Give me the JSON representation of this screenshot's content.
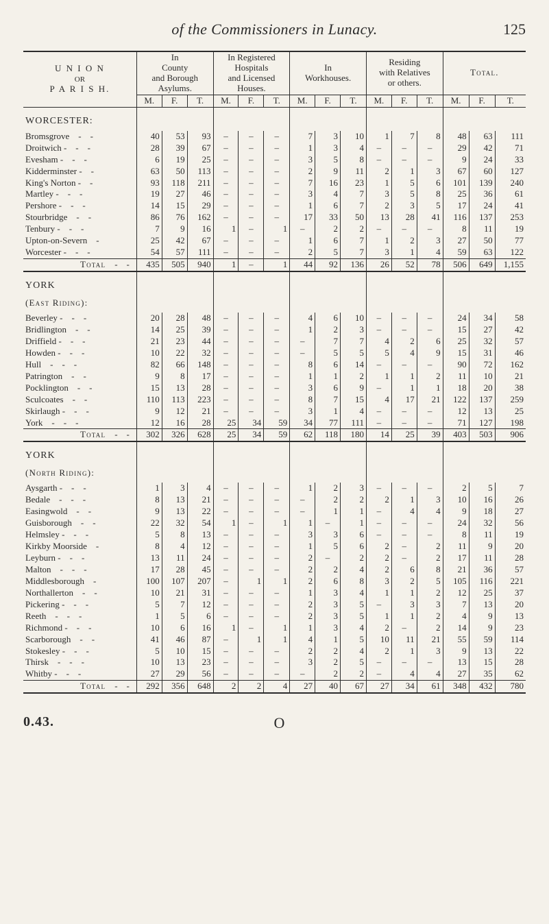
{
  "page": {
    "running_title_italic": "of the Commissioners in Lunacy.",
    "page_number": "125",
    "signature": "0.43.",
    "sheet_mark": "O"
  },
  "headers": {
    "union": [
      "U N I O N",
      "OR",
      "P A R I S H."
    ],
    "groups": [
      "In\nCounty\nand Borough\nAsylums.",
      "In Registered\nHospitals\nand Licensed\nHouses.",
      "In\nWorkhouses.",
      "Residing\nwith Relatives\nor others.",
      "Total."
    ],
    "sub": [
      "M.",
      "F.",
      "T."
    ]
  },
  "dash": "–",
  "sections": [
    {
      "title": "WORCESTER:",
      "rows": [
        {
          "stub": "Bromsgrove",
          "d": 2,
          "v": [
            "40",
            "53",
            "93",
            "–",
            "–",
            "–",
            "7",
            "3",
            "10",
            "1",
            "7",
            "8",
            "48",
            "63",
            "111"
          ]
        },
        {
          "stub": "Droitwich -",
          "d": 2,
          "v": [
            "28",
            "39",
            "67",
            "–",
            "–",
            "–",
            "1",
            "3",
            "4",
            "–",
            "–",
            "–",
            "29",
            "42",
            "71"
          ]
        },
        {
          "stub": "Evesham -",
          "d": 2,
          "v": [
            "6",
            "19",
            "25",
            "–",
            "–",
            "–",
            "3",
            "5",
            "8",
            "–",
            "–",
            "–",
            "9",
            "24",
            "33"
          ]
        },
        {
          "stub": "Kidderminster -",
          "d": 1,
          "v": [
            "63",
            "50",
            "113",
            "–",
            "–",
            "–",
            "2",
            "9",
            "11",
            "2",
            "1",
            "3",
            "67",
            "60",
            "127"
          ]
        },
        {
          "stub": "King's Norton -",
          "d": 1,
          "v": [
            "93",
            "118",
            "211",
            "–",
            "–",
            "–",
            "7",
            "16",
            "23",
            "1",
            "5",
            "6",
            "101",
            "139",
            "240"
          ]
        },
        {
          "stub": "Martley -",
          "d": 2,
          "v": [
            "19",
            "27",
            "46",
            "–",
            "–",
            "–",
            "3",
            "4",
            "7",
            "3",
            "5",
            "8",
            "25",
            "36",
            "61"
          ]
        },
        {
          "stub": "Pershore -",
          "d": 2,
          "v": [
            "14",
            "15",
            "29",
            "–",
            "–",
            "–",
            "1",
            "6",
            "7",
            "2",
            "3",
            "5",
            "17",
            "24",
            "41"
          ]
        },
        {
          "stub": "Stourbridge",
          "d": 2,
          "v": [
            "86",
            "76",
            "162",
            "–",
            "–",
            "–",
            "17",
            "33",
            "50",
            "13",
            "28",
            "41",
            "116",
            "137",
            "253"
          ]
        },
        {
          "stub": "Tenbury -",
          "d": 2,
          "v": [
            "7",
            "9",
            "16",
            "1",
            "–",
            "1",
            "–",
            "2",
            "2",
            "–",
            "–",
            "–",
            "8",
            "11",
            "19"
          ]
        },
        {
          "stub": "Upton-on-Severn",
          "d": 1,
          "v": [
            "25",
            "42",
            "67",
            "–",
            "–",
            "–",
            "1",
            "6",
            "7",
            "1",
            "2",
            "3",
            "27",
            "50",
            "77"
          ]
        },
        {
          "stub": "Worcester -",
          "d": 2,
          "v": [
            "54",
            "57",
            "111",
            "–",
            "–",
            "–",
            "2",
            "5",
            "7",
            "3",
            "1",
            "4",
            "59",
            "63",
            "122"
          ]
        }
      ],
      "total": {
        "stub": "Total",
        "d": 2,
        "v": [
          "435",
          "505",
          "940",
          "1",
          "–",
          "1",
          "44",
          "92",
          "136",
          "26",
          "52",
          "78",
          "506",
          "649",
          "1,155"
        ]
      }
    },
    {
      "title": "YORK",
      "subtitle": "(East Riding):",
      "rows": [
        {
          "stub": "Beverley -",
          "d": 2,
          "v": [
            "20",
            "28",
            "48",
            "–",
            "–",
            "–",
            "4",
            "6",
            "10",
            "–",
            "–",
            "–",
            "24",
            "34",
            "58"
          ]
        },
        {
          "stub": "Bridlington",
          "d": 2,
          "v": [
            "14",
            "25",
            "39",
            "–",
            "–",
            "–",
            "1",
            "2",
            "3",
            "–",
            "–",
            "–",
            "15",
            "27",
            "42"
          ]
        },
        {
          "stub": "Driffield -",
          "d": 2,
          "v": [
            "21",
            "23",
            "44",
            "–",
            "–",
            "–",
            "–",
            "7",
            "7",
            "4",
            "2",
            "6",
            "25",
            "32",
            "57"
          ]
        },
        {
          "stub": "Howden -",
          "d": 2,
          "v": [
            "10",
            "22",
            "32",
            "–",
            "–",
            "–",
            "–",
            "5",
            "5",
            "5",
            "4",
            "9",
            "15",
            "31",
            "46"
          ]
        },
        {
          "stub": "Hull",
          "d": 3,
          "v": [
            "82",
            "66",
            "148",
            "–",
            "–",
            "–",
            "8",
            "6",
            "14",
            "–",
            "–",
            "–",
            "90",
            "72",
            "162"
          ]
        },
        {
          "stub": "Patrington",
          "d": 2,
          "v": [
            "9",
            "8",
            "17",
            "–",
            "–",
            "–",
            "1",
            "1",
            "2",
            "1",
            "1",
            "2",
            "11",
            "10",
            "21"
          ]
        },
        {
          "stub": "Pocklington",
          "d": 2,
          "v": [
            "15",
            "13",
            "28",
            "–",
            "–",
            "–",
            "3",
            "6",
            "9",
            "–",
            "1",
            "1",
            "18",
            "20",
            "38"
          ]
        },
        {
          "stub": "Sculcoates",
          "d": 2,
          "v": [
            "110",
            "113",
            "223",
            "–",
            "–",
            "–",
            "8",
            "7",
            "15",
            "4",
            "17",
            "21",
            "122",
            "137",
            "259"
          ]
        },
        {
          "stub": "Skirlaugh -",
          "d": 2,
          "v": [
            "9",
            "12",
            "21",
            "–",
            "–",
            "–",
            "3",
            "1",
            "4",
            "–",
            "–",
            "–",
            "12",
            "13",
            "25"
          ]
        },
        {
          "stub": "York",
          "d": 3,
          "v": [
            "12",
            "16",
            "28",
            "25",
            "34",
            "59",
            "34",
            "77",
            "111",
            "–",
            "–",
            "–",
            "71",
            "127",
            "198"
          ]
        }
      ],
      "total": {
        "stub": "Total",
        "d": 2,
        "v": [
          "302",
          "326",
          "628",
          "25",
          "34",
          "59",
          "62",
          "118",
          "180",
          "14",
          "25",
          "39",
          "403",
          "503",
          "906"
        ]
      }
    },
    {
      "title": "YORK",
      "subtitle": "(North Riding):",
      "rows": [
        {
          "stub": "Aysgarth -",
          "d": 2,
          "v": [
            "1",
            "3",
            "4",
            "–",
            "–",
            "–",
            "1",
            "2",
            "3",
            "–",
            "–",
            "–",
            "2",
            "5",
            "7"
          ]
        },
        {
          "stub": "Bedale",
          "d": 3,
          "v": [
            "8",
            "13",
            "21",
            "–",
            "–",
            "–",
            "–",
            "2",
            "2",
            "2",
            "1",
            "3",
            "10",
            "16",
            "26"
          ]
        },
        {
          "stub": "Easingwold",
          "d": 2,
          "v": [
            "9",
            "13",
            "22",
            "–",
            "–",
            "–",
            "–",
            "1",
            "1",
            "–",
            "4",
            "4",
            "9",
            "18",
            "27"
          ]
        },
        {
          "stub": "Guisborough",
          "d": 2,
          "v": [
            "22",
            "32",
            "54",
            "1",
            "–",
            "1",
            "1",
            "–",
            "1",
            "–",
            "–",
            "–",
            "24",
            "32",
            "56"
          ]
        },
        {
          "stub": "Helmsley -",
          "d": 2,
          "v": [
            "5",
            "8",
            "13",
            "–",
            "–",
            "–",
            "3",
            "3",
            "6",
            "–",
            "–",
            "–",
            "8",
            "11",
            "19"
          ]
        },
        {
          "stub": "Kirkby Moorside",
          "d": 1,
          "v": [
            "8",
            "4",
            "12",
            "–",
            "–",
            "–",
            "1",
            "5",
            "6",
            "2",
            "–",
            "2",
            "11",
            "9",
            "20"
          ]
        },
        {
          "stub": "Leyburn -",
          "d": 2,
          "v": [
            "13",
            "11",
            "24",
            "–",
            "–",
            "–",
            "2",
            "–",
            "2",
            "2",
            "–",
            "2",
            "17",
            "11",
            "28"
          ]
        },
        {
          "stub": "Malton",
          "d": 3,
          "v": [
            "17",
            "28",
            "45",
            "–",
            "–",
            "–",
            "2",
            "2",
            "4",
            "2",
            "6",
            "8",
            "21",
            "36",
            "57"
          ]
        },
        {
          "stub": "Middlesborough",
          "d": 1,
          "v": [
            "100",
            "107",
            "207",
            "–",
            "1",
            "1",
            "2",
            "6",
            "8",
            "3",
            "2",
            "5",
            "105",
            "116",
            "221"
          ]
        },
        {
          "stub": "Northallerton",
          "d": 2,
          "v": [
            "10",
            "21",
            "31",
            "–",
            "–",
            "–",
            "1",
            "3",
            "4",
            "1",
            "1",
            "2",
            "12",
            "25",
            "37"
          ]
        },
        {
          "stub": "Pickering -",
          "d": 2,
          "v": [
            "5",
            "7",
            "12",
            "–",
            "–",
            "–",
            "2",
            "3",
            "5",
            "–",
            "3",
            "3",
            "7",
            "13",
            "20"
          ]
        },
        {
          "stub": "Reeth",
          "d": 3,
          "v": [
            "1",
            "5",
            "6",
            "–",
            "–",
            "–",
            "2",
            "3",
            "5",
            "1",
            "1",
            "2",
            "4",
            "9",
            "13"
          ]
        },
        {
          "stub": "Richmond -",
          "d": 2,
          "v": [
            "10",
            "6",
            "16",
            "1",
            "–",
            "1",
            "1",
            "3",
            "4",
            "2",
            "–",
            "2",
            "14",
            "9",
            "23"
          ]
        },
        {
          "stub": "Scarborough",
          "d": 2,
          "v": [
            "41",
            "46",
            "87",
            "–",
            "1",
            "1",
            "4",
            "1",
            "5",
            "10",
            "11",
            "21",
            "55",
            "59",
            "114"
          ]
        },
        {
          "stub": "Stokesley -",
          "d": 2,
          "v": [
            "5",
            "10",
            "15",
            "–",
            "–",
            "–",
            "2",
            "2",
            "4",
            "2",
            "1",
            "3",
            "9",
            "13",
            "22"
          ]
        },
        {
          "stub": "Thirsk",
          "d": 3,
          "v": [
            "10",
            "13",
            "23",
            "–",
            "–",
            "–",
            "3",
            "2",
            "5",
            "–",
            "–",
            "–",
            "13",
            "15",
            "28"
          ]
        },
        {
          "stub": "Whitby -",
          "d": 2,
          "v": [
            "27",
            "29",
            "56",
            "–",
            "–",
            "–",
            "–",
            "2",
            "2",
            "–",
            "4",
            "4",
            "27",
            "35",
            "62"
          ]
        }
      ],
      "total": {
        "stub": "Total",
        "d": 2,
        "v": [
          "292",
          "356",
          "648",
          "2",
          "2",
          "4",
          "27",
          "40",
          "67",
          "27",
          "34",
          "61",
          "348",
          "432",
          "780"
        ]
      }
    }
  ]
}
